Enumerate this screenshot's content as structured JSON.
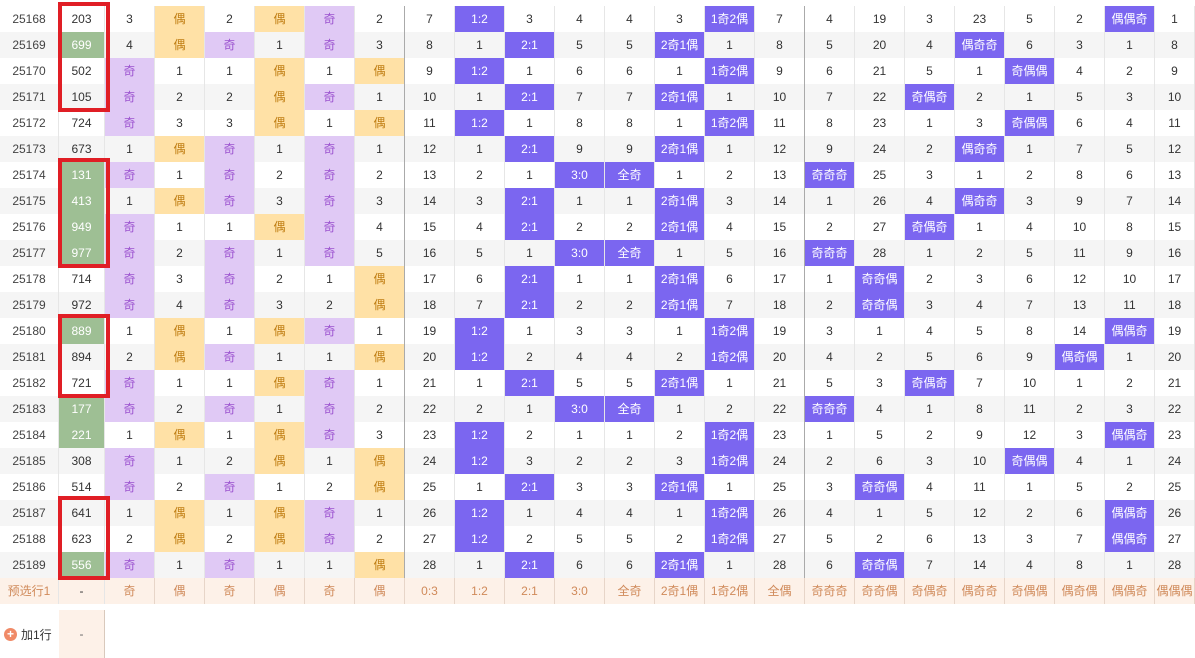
{
  "rows": [
    {
      "n": "25168",
      "v": "203",
      "c": [
        "3",
        "偶",
        "2",
        "偶",
        "奇",
        "2",
        "7",
        "1:2",
        "3",
        "4",
        "4",
        "3",
        "1奇2偶",
        "7",
        "4",
        "19",
        "3",
        "23",
        "5",
        "2",
        "偶偶奇",
        "1"
      ]
    },
    {
      "n": "25169",
      "v": "699",
      "c": [
        "4",
        "偶",
        "奇",
        "1",
        "奇",
        "3",
        "8",
        "1",
        "2:1",
        "5",
        "5",
        "2奇1偶",
        "1",
        "8",
        "5",
        "20",
        "4",
        "偶奇奇",
        "6",
        "3",
        "1",
        "8"
      ]
    },
    {
      "n": "25170",
      "v": "502",
      "c": [
        "奇",
        "1",
        "1",
        "偶",
        "1",
        "偶",
        "9",
        "1:2",
        "1",
        "6",
        "6",
        "1",
        "1奇2偶",
        "9",
        "6",
        "21",
        "5",
        "1",
        "奇偶偶",
        "4",
        "2",
        "9"
      ]
    },
    {
      "n": "25171",
      "v": "105",
      "c": [
        "奇",
        "2",
        "2",
        "偶",
        "奇",
        "1",
        "10",
        "1",
        "2:1",
        "7",
        "7",
        "2奇1偶",
        "1",
        "10",
        "7",
        "22",
        "奇偶奇",
        "2",
        "1",
        "5",
        "3",
        "10"
      ]
    },
    {
      "n": "25172",
      "v": "724",
      "c": [
        "奇",
        "3",
        "3",
        "偶",
        "1",
        "偶",
        "11",
        "1:2",
        "1",
        "8",
        "8",
        "1",
        "1奇2偶",
        "11",
        "8",
        "23",
        "1",
        "3",
        "奇偶偶",
        "6",
        "4",
        "11"
      ]
    },
    {
      "n": "25173",
      "v": "673",
      "c": [
        "1",
        "偶",
        "奇",
        "1",
        "奇",
        "1",
        "12",
        "1",
        "2:1",
        "9",
        "9",
        "2奇1偶",
        "1",
        "12",
        "9",
        "24",
        "2",
        "偶奇奇",
        "1",
        "7",
        "5",
        "12"
      ]
    },
    {
      "n": "25174",
      "v": "131",
      "c": [
        "奇",
        "1",
        "奇",
        "2",
        "奇",
        "2",
        "13",
        "2",
        "1",
        "3:0",
        "全奇",
        "1",
        "2",
        "13",
        "奇奇奇",
        "25",
        "3",
        "1",
        "2",
        "8",
        "6",
        "13"
      ]
    },
    {
      "n": "25175",
      "v": "413",
      "c": [
        "1",
        "偶",
        "奇",
        "3",
        "奇",
        "3",
        "14",
        "3",
        "2:1",
        "1",
        "1",
        "2奇1偶",
        "3",
        "14",
        "1",
        "26",
        "4",
        "偶奇奇",
        "3",
        "9",
        "7",
        "14"
      ]
    },
    {
      "n": "25176",
      "v": "949",
      "c": [
        "奇",
        "1",
        "1",
        "偶",
        "奇",
        "4",
        "15",
        "4",
        "2:1",
        "2",
        "2",
        "2奇1偶",
        "4",
        "15",
        "2",
        "27",
        "奇偶奇",
        "1",
        "4",
        "10",
        "8",
        "15"
      ]
    },
    {
      "n": "25177",
      "v": "977",
      "c": [
        "奇",
        "2",
        "奇",
        "1",
        "奇",
        "5",
        "16",
        "5",
        "1",
        "3:0",
        "全奇",
        "1",
        "5",
        "16",
        "奇奇奇",
        "28",
        "1",
        "2",
        "5",
        "11",
        "9",
        "16"
      ]
    },
    {
      "n": "25178",
      "v": "714",
      "c": [
        "奇",
        "3",
        "奇",
        "2",
        "1",
        "偶",
        "17",
        "6",
        "2:1",
        "1",
        "1",
        "2奇1偶",
        "6",
        "17",
        "1",
        "奇奇偶",
        "2",
        "3",
        "6",
        "12",
        "10",
        "17"
      ]
    },
    {
      "n": "25179",
      "v": "972",
      "c": [
        "奇",
        "4",
        "奇",
        "3",
        "2",
        "偶",
        "18",
        "7",
        "2:1",
        "2",
        "2",
        "2奇1偶",
        "7",
        "18",
        "2",
        "奇奇偶",
        "3",
        "4",
        "7",
        "13",
        "11",
        "18"
      ]
    },
    {
      "n": "25180",
      "v": "889",
      "c": [
        "1",
        "偶",
        "1",
        "偶",
        "奇",
        "1",
        "19",
        "1:2",
        "1",
        "3",
        "3",
        "1",
        "1奇2偶",
        "19",
        "3",
        "1",
        "4",
        "5",
        "8",
        "14",
        "偶偶奇",
        "19"
      ]
    },
    {
      "n": "25181",
      "v": "894",
      "c": [
        "2",
        "偶",
        "奇",
        "1",
        "1",
        "偶",
        "20",
        "1:2",
        "2",
        "4",
        "4",
        "2",
        "1奇2偶",
        "20",
        "4",
        "2",
        "5",
        "6",
        "9",
        "偶奇偶",
        "1",
        "20"
      ]
    },
    {
      "n": "25182",
      "v": "721",
      "c": [
        "奇",
        "1",
        "1",
        "偶",
        "奇",
        "1",
        "21",
        "1",
        "2:1",
        "5",
        "5",
        "2奇1偶",
        "1",
        "21",
        "5",
        "3",
        "奇偶奇",
        "7",
        "10",
        "1",
        "2",
        "21"
      ]
    },
    {
      "n": "25183",
      "v": "177",
      "c": [
        "奇",
        "2",
        "奇",
        "1",
        "奇",
        "2",
        "22",
        "2",
        "1",
        "3:0",
        "全奇",
        "1",
        "2",
        "22",
        "奇奇奇",
        "4",
        "1",
        "8",
        "11",
        "2",
        "3",
        "22"
      ]
    },
    {
      "n": "25184",
      "v": "221",
      "c": [
        "1",
        "偶",
        "1",
        "偶",
        "奇",
        "3",
        "23",
        "1:2",
        "2",
        "1",
        "1",
        "2",
        "1奇2偶",
        "23",
        "1",
        "5",
        "2",
        "9",
        "12",
        "3",
        "偶偶奇",
        "23"
      ]
    },
    {
      "n": "25185",
      "v": "308",
      "c": [
        "奇",
        "1",
        "2",
        "偶",
        "1",
        "偶",
        "24",
        "1:2",
        "3",
        "2",
        "2",
        "3",
        "1奇2偶",
        "24",
        "2",
        "6",
        "3",
        "10",
        "奇偶偶",
        "4",
        "1",
        "24"
      ]
    },
    {
      "n": "25186",
      "v": "514",
      "c": [
        "奇",
        "2",
        "奇",
        "1",
        "2",
        "偶",
        "25",
        "1",
        "2:1",
        "3",
        "3",
        "2奇1偶",
        "1",
        "25",
        "3",
        "奇奇偶",
        "4",
        "11",
        "1",
        "5",
        "2",
        "25"
      ]
    },
    {
      "n": "25187",
      "v": "641",
      "c": [
        "1",
        "偶",
        "1",
        "偶",
        "奇",
        "1",
        "26",
        "1:2",
        "1",
        "4",
        "4",
        "1",
        "1奇2偶",
        "26",
        "4",
        "1",
        "5",
        "12",
        "2",
        "6",
        "偶偶奇",
        "26"
      ]
    },
    {
      "n": "25188",
      "v": "623",
      "c": [
        "2",
        "偶",
        "2",
        "偶",
        "奇",
        "2",
        "27",
        "1:2",
        "2",
        "5",
        "5",
        "2",
        "1奇2偶",
        "27",
        "5",
        "2",
        "6",
        "13",
        "3",
        "7",
        "偶偶奇",
        "27"
      ]
    },
    {
      "n": "25189",
      "v": "556",
      "c": [
        "奇",
        "1",
        "奇",
        "1",
        "1",
        "偶",
        "28",
        "1",
        "2:1",
        "6",
        "6",
        "2奇1偶",
        "1",
        "28",
        "6",
        "奇奇偶",
        "7",
        "14",
        "4",
        "8",
        "1",
        "28"
      ]
    }
  ],
  "preselect": {
    "label": "预选行1",
    "dash": "-",
    "cells": [
      "奇",
      "偶",
      "奇",
      "偶",
      "奇",
      "偶",
      "0:3",
      "1:2",
      "2:1",
      "3:0",
      "全奇",
      "2奇1偶",
      "1奇2偶",
      "全偶",
      "奇奇奇",
      "奇奇偶",
      "奇偶奇",
      "偶奇奇",
      "奇偶偶",
      "偶奇偶",
      "偶偶奇",
      "偶偶偶"
    ]
  },
  "add_row": {
    "icon": "plus-circle-icon",
    "label": "加1行",
    "dash": "-"
  },
  "colors": {
    "odd_purple": "#e0c9f5",
    "even_orange": "#ffe1a6",
    "selected_violet": "#7b66f0",
    "green_value": "#9ebf94",
    "highlight_red": "#e01e25"
  }
}
